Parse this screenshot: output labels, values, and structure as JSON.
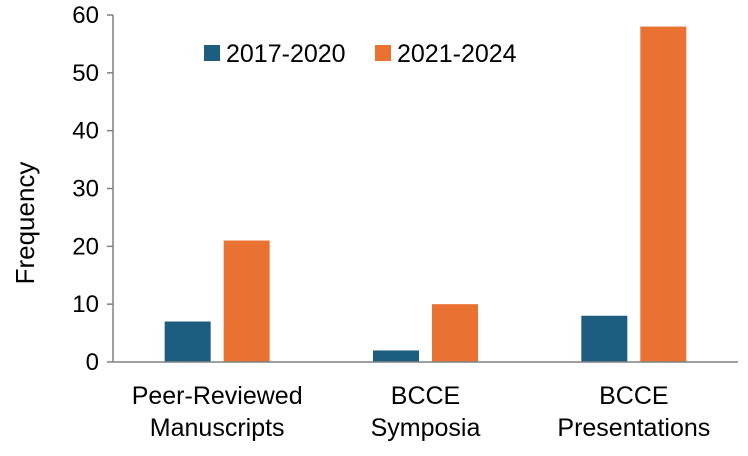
{
  "chart_data": {
    "type": "bar",
    "categories": [
      [
        "Peer-Reviewed",
        "Manuscripts"
      ],
      [
        "BCCE",
        "Symposia"
      ],
      [
        "BCCE",
        "Presentations"
      ]
    ],
    "series": [
      {
        "name": "2017-2020",
        "values": [
          7,
          2,
          8
        ],
        "color": "#1b5e80"
      },
      {
        "name": "2021-2024",
        "values": [
          21,
          10,
          58
        ],
        "color": "#e97132"
      }
    ],
    "title": "",
    "xlabel": "",
    "ylabel": "Frequency",
    "ylim": [
      0,
      60
    ],
    "yticks": [
      0,
      10,
      20,
      30,
      40,
      50,
      60
    ],
    "grid": false,
    "legend": "top"
  }
}
